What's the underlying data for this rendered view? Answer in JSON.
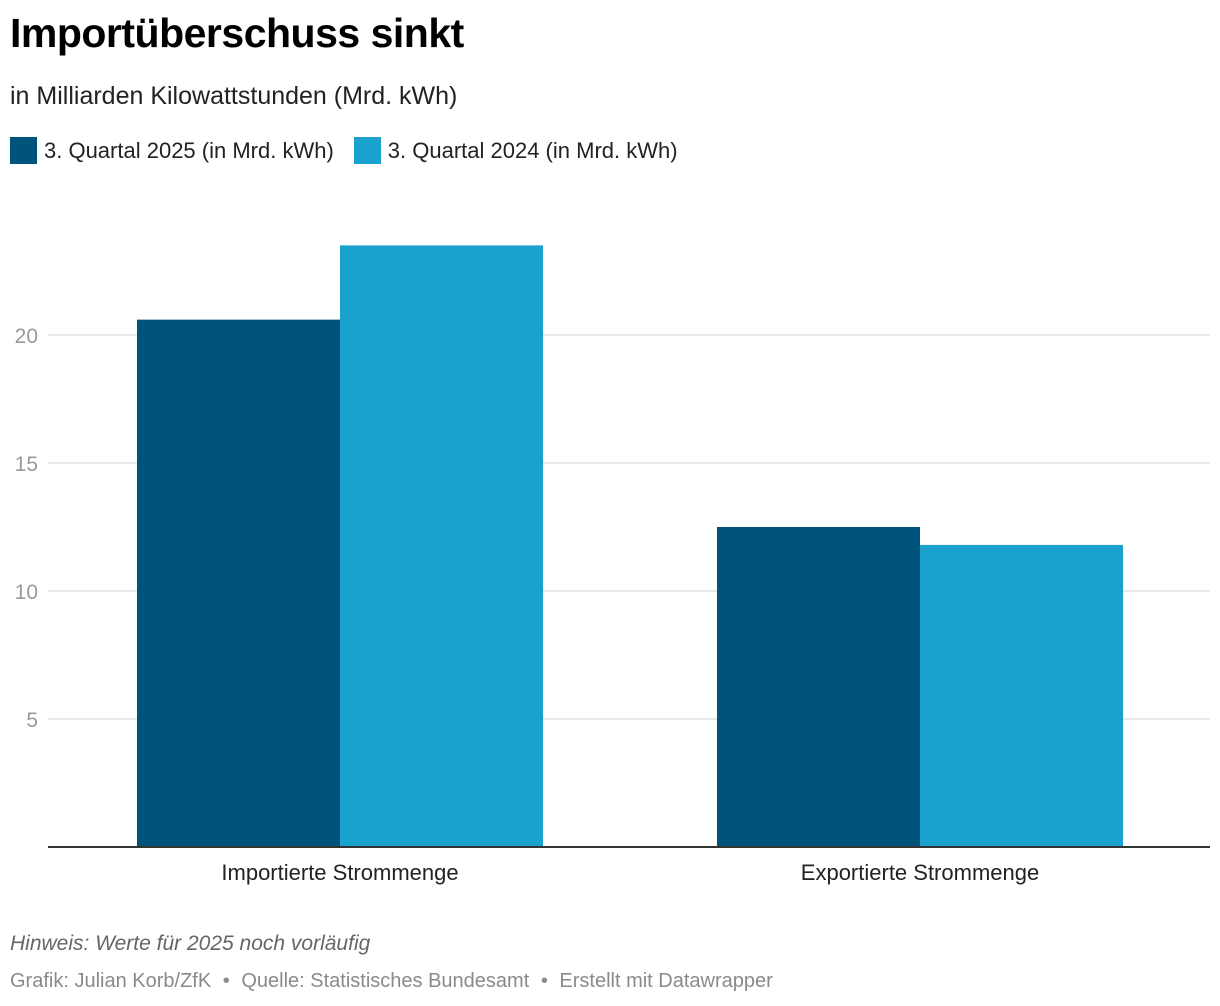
{
  "header": {
    "title": "Importüberschuss sinkt",
    "subtitle": "in Milliarden Kilowattstunden (Mrd. kWh)"
  },
  "colors": {
    "series_2025": "#00537a",
    "series_2024": "#1aa1cd",
    "grid": "#e3e3e3",
    "axis": "#333333",
    "tick_text": "#999999"
  },
  "chart_data": {
    "type": "bar",
    "categories": [
      "Importierte Strommenge",
      "Exportierte Strommenge"
    ],
    "series": [
      {
        "name": "3. Quartal 2025 (in Mrd. kWh)",
        "values": [
          20.6,
          12.5
        ]
      },
      {
        "name": "3. Quartal 2024 (in Mrd. kWh)",
        "values": [
          23.5,
          11.8
        ]
      }
    ],
    "yticks": [
      5,
      10,
      15,
      20
    ],
    "ylim": [
      0,
      25
    ],
    "grid": true,
    "legend": "top-left"
  },
  "footer": {
    "note": "Hinweis: Werte für 2025 noch vorläufig",
    "credit": "Grafik: Julian Korb/ZfK",
    "source": "Quelle: Statistisches Bundesamt",
    "tool": "Erstellt mit Datawrapper",
    "separator": "•"
  }
}
